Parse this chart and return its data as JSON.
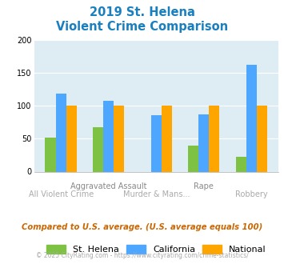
{
  "title_line1": "2019 St. Helena",
  "title_line2": "Violent Crime Comparison",
  "categories": [
    "All Violent Crime",
    "Aggravated Assault",
    "Murder & Mans...",
    "Rape",
    "Robbery"
  ],
  "st_helena": [
    52,
    67,
    0,
    40,
    22
  ],
  "california": [
    118,
    107,
    86,
    87,
    162
  ],
  "national": [
    100,
    100,
    100,
    100,
    100
  ],
  "colors": {
    "st_helena": "#7dc242",
    "california": "#4da6ff",
    "national": "#ffa500"
  },
  "ylim": [
    0,
    200
  ],
  "yticks": [
    0,
    50,
    100,
    150,
    200
  ],
  "plot_bg": "#deedf4",
  "title_color": "#1a7fbf",
  "subtitle_note": "Compared to U.S. average. (U.S. average equals 100)",
  "footnote": "© 2025 CityRating.com - https://www.cityrating.com/crime-statistics/",
  "legend_labels": [
    "St. Helena",
    "California",
    "National"
  ],
  "bar_width": 0.22,
  "top_xlabels": {
    "1": "Aggravated Assault",
    "3": "Rape"
  },
  "bot_xlabels": {
    "0": "All Violent Crime",
    "2": "Murder & Mans...",
    "4": "Robbery"
  },
  "top_xlabel_color": "#888888",
  "bot_xlabel_color": "#aaaaaa",
  "subtitle_color": "#cc6600",
  "footnote_color": "#aaaaaa"
}
